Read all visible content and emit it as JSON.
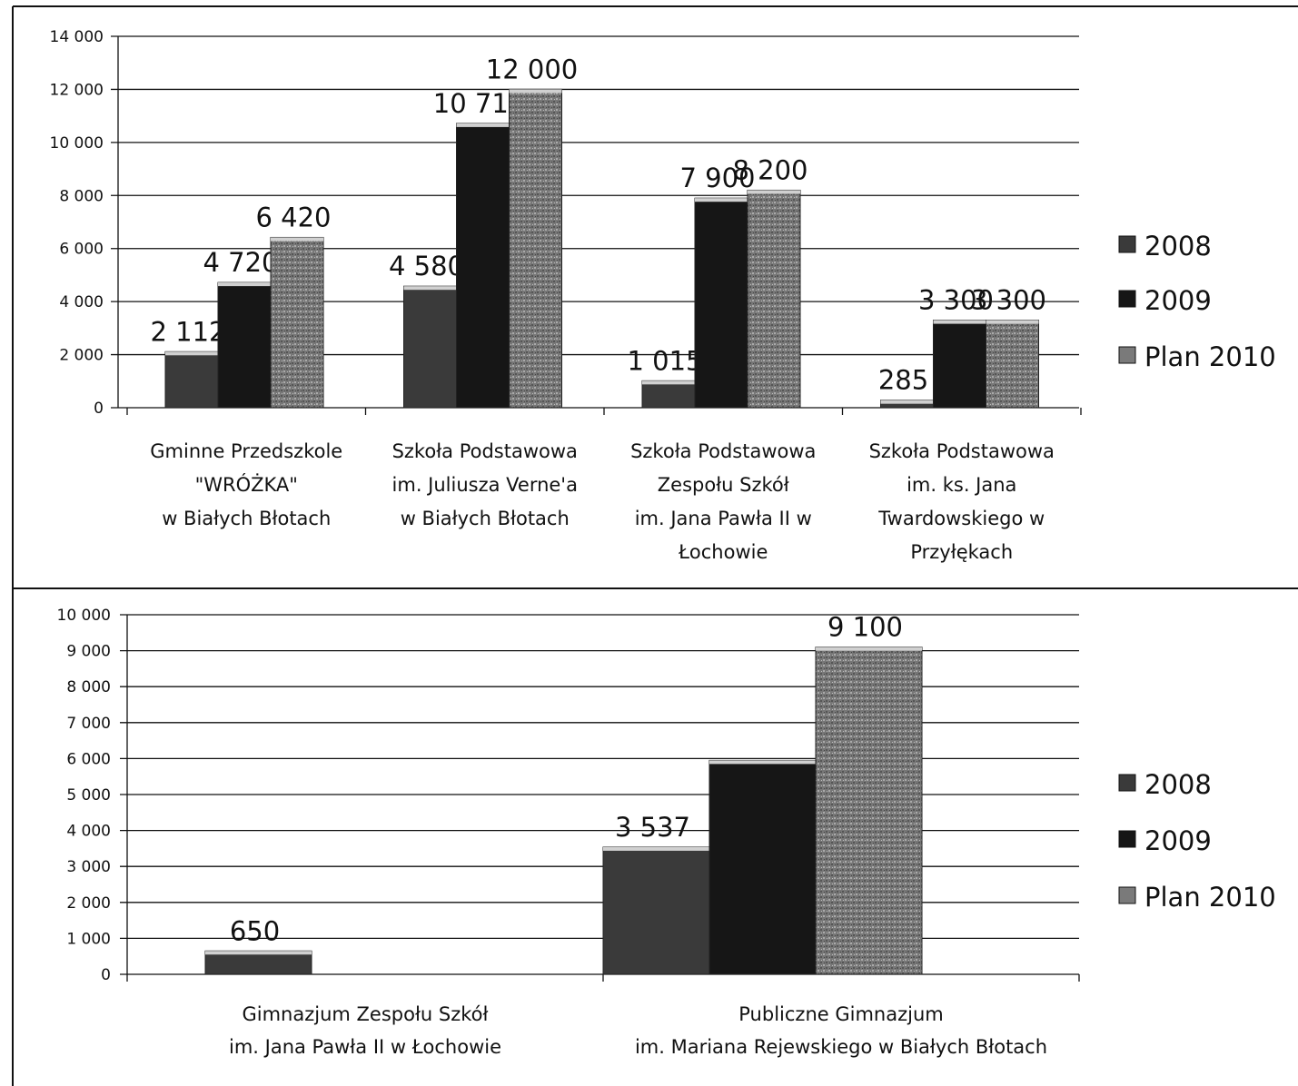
{
  "chart_data": [
    {
      "type": "bar",
      "categories": [
        [
          "Gminne Przedszkole",
          "\"WRÓŻKA\"",
          "w Białych Błotach"
        ],
        [
          "Szkoła Podstawowa",
          "im. Juliusza Verne'a",
          "w Białych Błotach"
        ],
        [
          "Szkoła Podstawowa",
          "Zespołu Szkół",
          "im. Jana Pawła II w",
          "Łochowie"
        ],
        [
          "Szkoła Podstawowa",
          "im. ks. Jana",
          "Twardowskiego w",
          "Przyłękach"
        ]
      ],
      "series": [
        {
          "name": "2008",
          "values": [
            2112,
            4580,
            1015,
            285
          ],
          "labels": [
            "2 112",
            "4 580",
            "1 015",
            "285"
          ]
        },
        {
          "name": "2009",
          "values": [
            4720,
            10717,
            7900,
            3300
          ],
          "labels": [
            "4 720",
            "10 717",
            "7 900",
            "3 300"
          ]
        },
        {
          "name": "Plan 2010",
          "values": [
            6420,
            12000,
            8200,
            3300
          ],
          "labels": [
            "6 420",
            "12 000",
            "8 200",
            "3 300"
          ]
        }
      ],
      "ylim": [
        0,
        14000
      ],
      "yticks": [
        "0",
        "2 000",
        "4 000",
        "6 000",
        "8 000",
        "10 000",
        "12 000",
        "14 000"
      ],
      "grid": true,
      "legend": "right"
    },
    {
      "type": "bar",
      "categories": [
        [
          "Gimnazjum Zespołu Szkół",
          "im. Jana Pawła II w Łochowie"
        ],
        [
          "Publiczne Gimnazjum",
          "im. Mariana Rejewskiego w Białych Błotach"
        ]
      ],
      "series": [
        {
          "name": "2008",
          "values": [
            650,
            3537
          ],
          "labels": [
            "650",
            "3 537"
          ]
        },
        {
          "name": "2009",
          "values": [
            0,
            5950
          ],
          "labels": [
            "",
            ""
          ]
        },
        {
          "name": "Plan 2010",
          "values": [
            0,
            9100
          ],
          "labels": [
            "",
            "9 100"
          ]
        }
      ],
      "ylim": [
        0,
        10000
      ],
      "yticks": [
        "0",
        "1 000",
        "2 000",
        "3 000",
        "4 000",
        "5 000",
        "6 000",
        "7 000",
        "8 000",
        "9 000",
        "10 000"
      ],
      "grid": true,
      "legend": "right"
    }
  ],
  "colors": {
    "series_2008": "#3a3a3a",
    "series_2009": "#161616",
    "series_plan_2010": "#7a7a7a",
    "bar_top": "#d0d0d0",
    "line": "#111111"
  }
}
